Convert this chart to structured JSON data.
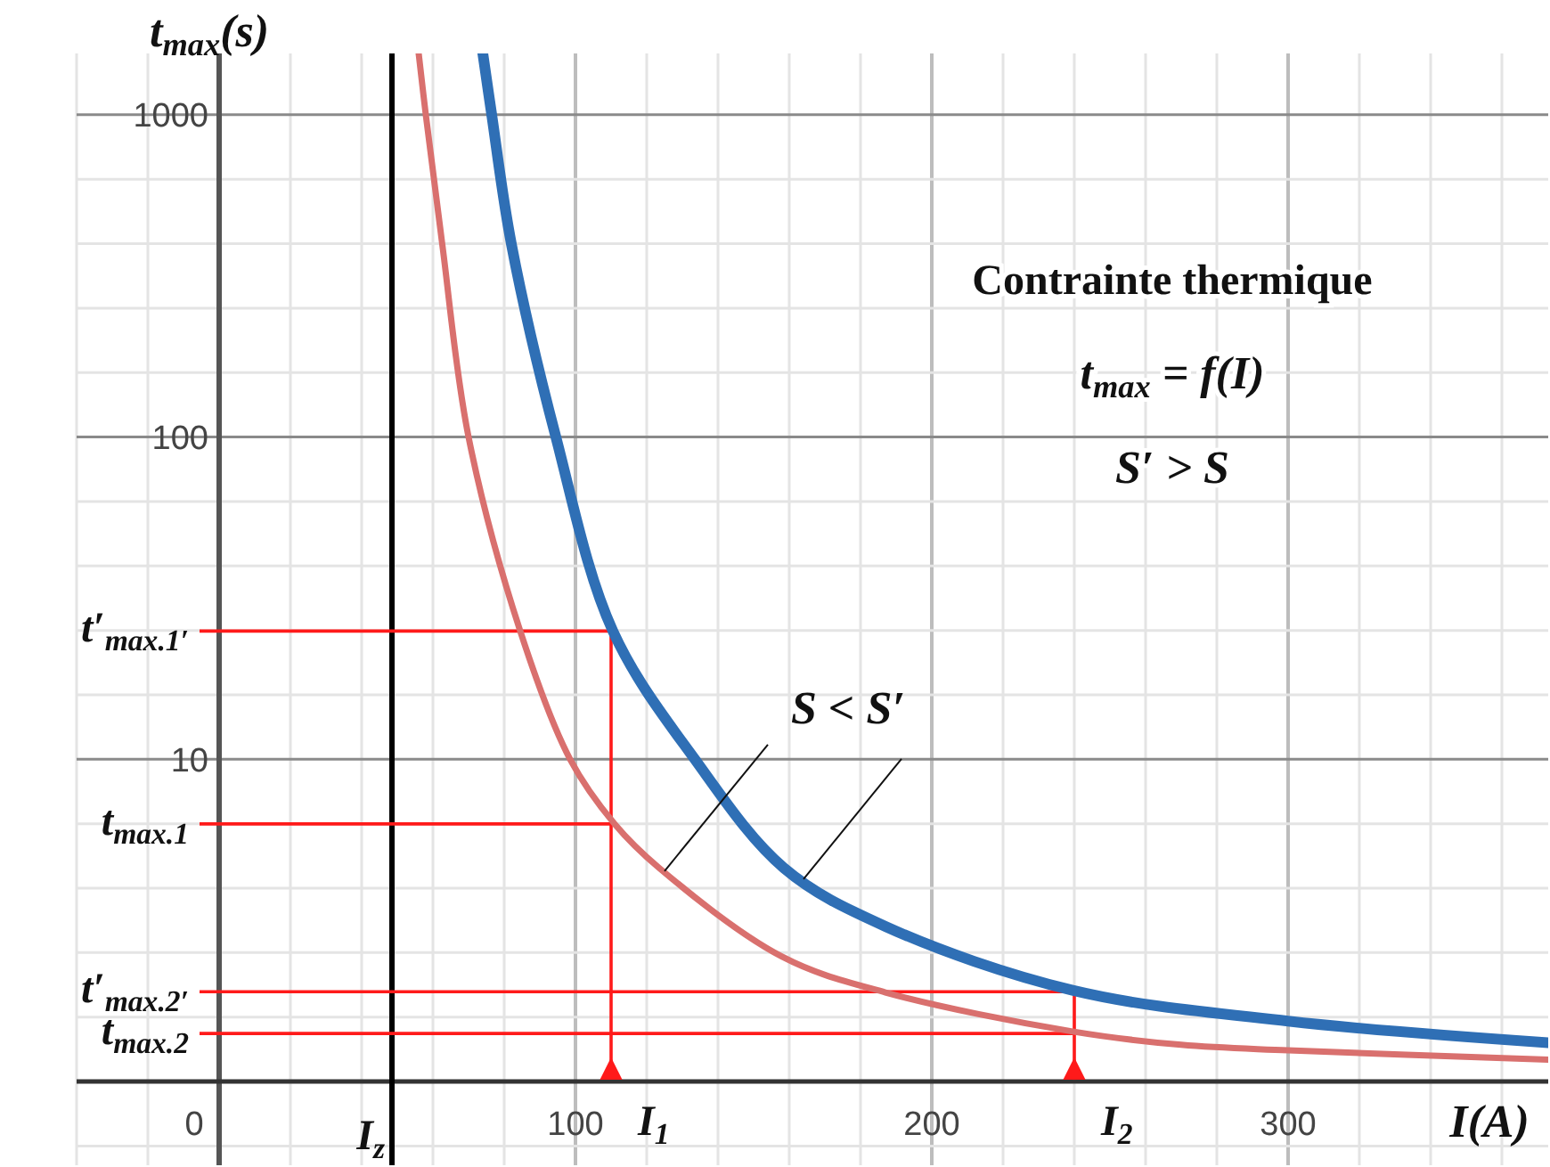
{
  "chart_data": {
    "type": "line",
    "xlabel": "I(A)",
    "ylabel": "t$_{max}$(s)",
    "log": "y",
    "grid": true,
    "marker": "none",
    "line_style": "solid",
    "xlim": [
      -40,
      373
    ],
    "ylim": [
      0.55,
      1550
    ],
    "xticks": [
      {
        "value": -40,
        "label": null
      },
      {
        "value": -20,
        "label": null
      },
      0,
      {
        "value": 20,
        "label": null
      },
      {
        "value": 40,
        "label": null
      },
      {
        "value": 60,
        "label": null
      },
      {
        "value": 80,
        "label": null
      },
      100,
      {
        "value": 120,
        "label": null
      },
      {
        "value": 140,
        "label": null
      },
      {
        "value": 160,
        "label": null
      },
      {
        "value": 180,
        "label": null
      },
      200,
      {
        "value": 220,
        "label": null
      },
      {
        "value": 240,
        "label": null
      },
      {
        "value": 260,
        "label": null
      },
      {
        "value": 280,
        "label": null
      },
      300,
      {
        "value": 320,
        "label": null
      },
      {
        "value": 340,
        "label": null
      },
      {
        "value": 360,
        "label": null
      }
    ],
    "yticks": [
      {
        "value": 0.631,
        "label": null
      },
      {
        "value": 1,
        "label": null
      },
      {
        "value": 1.585,
        "label": null
      },
      {
        "value": 2.512,
        "label": null
      },
      {
        "value": 3.981,
        "label": null
      },
      {
        "value": 6.31,
        "label": null
      },
      10,
      {
        "value": 15.85,
        "label": null
      },
      {
        "value": 25.12,
        "label": null
      },
      {
        "value": 39.81,
        "label": null
      },
      {
        "value": 63.1,
        "label": null
      },
      100,
      {
        "value": 158.5,
        "label": null
      },
      {
        "value": 251.2,
        "label": null
      },
      {
        "value": 398.1,
        "label": null
      },
      {
        "value": 631,
        "label": null
      },
      1000
    ],
    "series": [
      {
        "color": "#d9706e",
        "x": [
          56,
          58,
          62.6,
          70,
          84.5,
          98.5,
          111,
          123.5,
          158,
          187,
          239.5,
          270,
          300,
          373
        ],
        "values": [
          1550,
          1000,
          398,
          100,
          25,
          10,
          6.3,
          4.6,
          2.44,
          1.89,
          1.43,
          1.3,
          1.25,
          1.17
        ]
      },
      {
        "color": "#2f6fb5",
        "x": [
          74,
          76.5,
          82,
          94.5,
          110.5,
          133.5,
          158.5,
          187,
          239.5,
          300,
          373
        ],
        "values": [
          1550,
          1000,
          398,
          100,
          25,
          10,
          4.6,
          3.03,
          1.92,
          1.54,
          1.32
        ]
      }
    ],
    "ref_lines": [
      {
        "axis": "x",
        "value": 48.5,
        "label": "I$_{z}$",
        "color": "#000000"
      },
      {
        "axis": "x",
        "value": 110,
        "label": "I$_{1}$",
        "color": "#ff1a1a"
      },
      {
        "axis": "x",
        "value": 240,
        "label": "I$_{2}$",
        "color": "#ff1a1a"
      },
      {
        "axis": "y",
        "value": 25,
        "label": "t′$_{max.1′}$",
        "color": "#ff1a1a"
      },
      {
        "axis": "y",
        "value": 6.3,
        "label": "t$_{max.1}$",
        "color": "#ff1a1a"
      },
      {
        "axis": "y",
        "value": 1.9,
        "label": "t′$_{max.2′}$",
        "color": "#ff1a1a"
      },
      {
        "axis": "y",
        "value": 1.41,
        "label": "t$_{max.2}$",
        "color": "#ff1a1a"
      }
    ],
    "annotations": [
      "Contrainte thermique",
      "t$_{max}$ = f(I)",
      "S′ > S",
      {
        "text": "S < S′",
        "x": 125,
        "y": 4.5
      }
    ]
  }
}
